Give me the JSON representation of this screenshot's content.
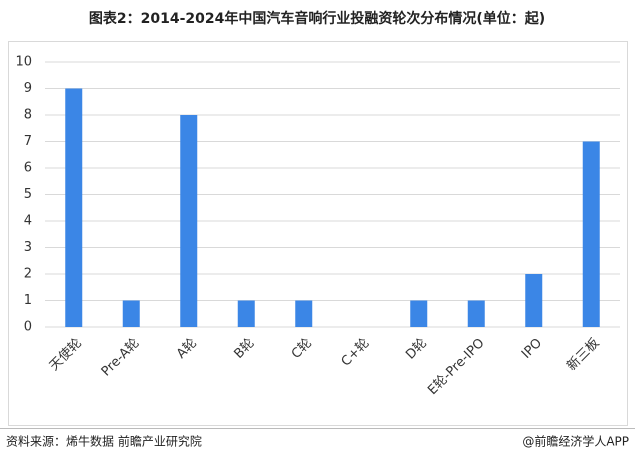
{
  "chart_data": {
    "type": "bar",
    "title": "图表2：2014-2024年中国汽车音响行业投融资轮次分布情况(单位：起)",
    "categories": [
      "天使轮",
      "Pre-A轮",
      "A轮",
      "B轮",
      "C轮",
      "C+轮",
      "D轮",
      "E轮-Pre-IPO",
      "IPO",
      "新三板"
    ],
    "values": [
      9,
      1,
      8,
      1,
      1,
      0,
      1,
      1,
      2,
      7
    ],
    "color": "#3b86e6",
    "ylim": [
      0,
      10
    ],
    "yticks": [
      0,
      1,
      2,
      3,
      4,
      5,
      6,
      7,
      8,
      9,
      10
    ],
    "grid": true,
    "source": "资料来源：烯牛数据 前瞻产业研究院",
    "credit": "@前瞻经济学人APP"
  }
}
